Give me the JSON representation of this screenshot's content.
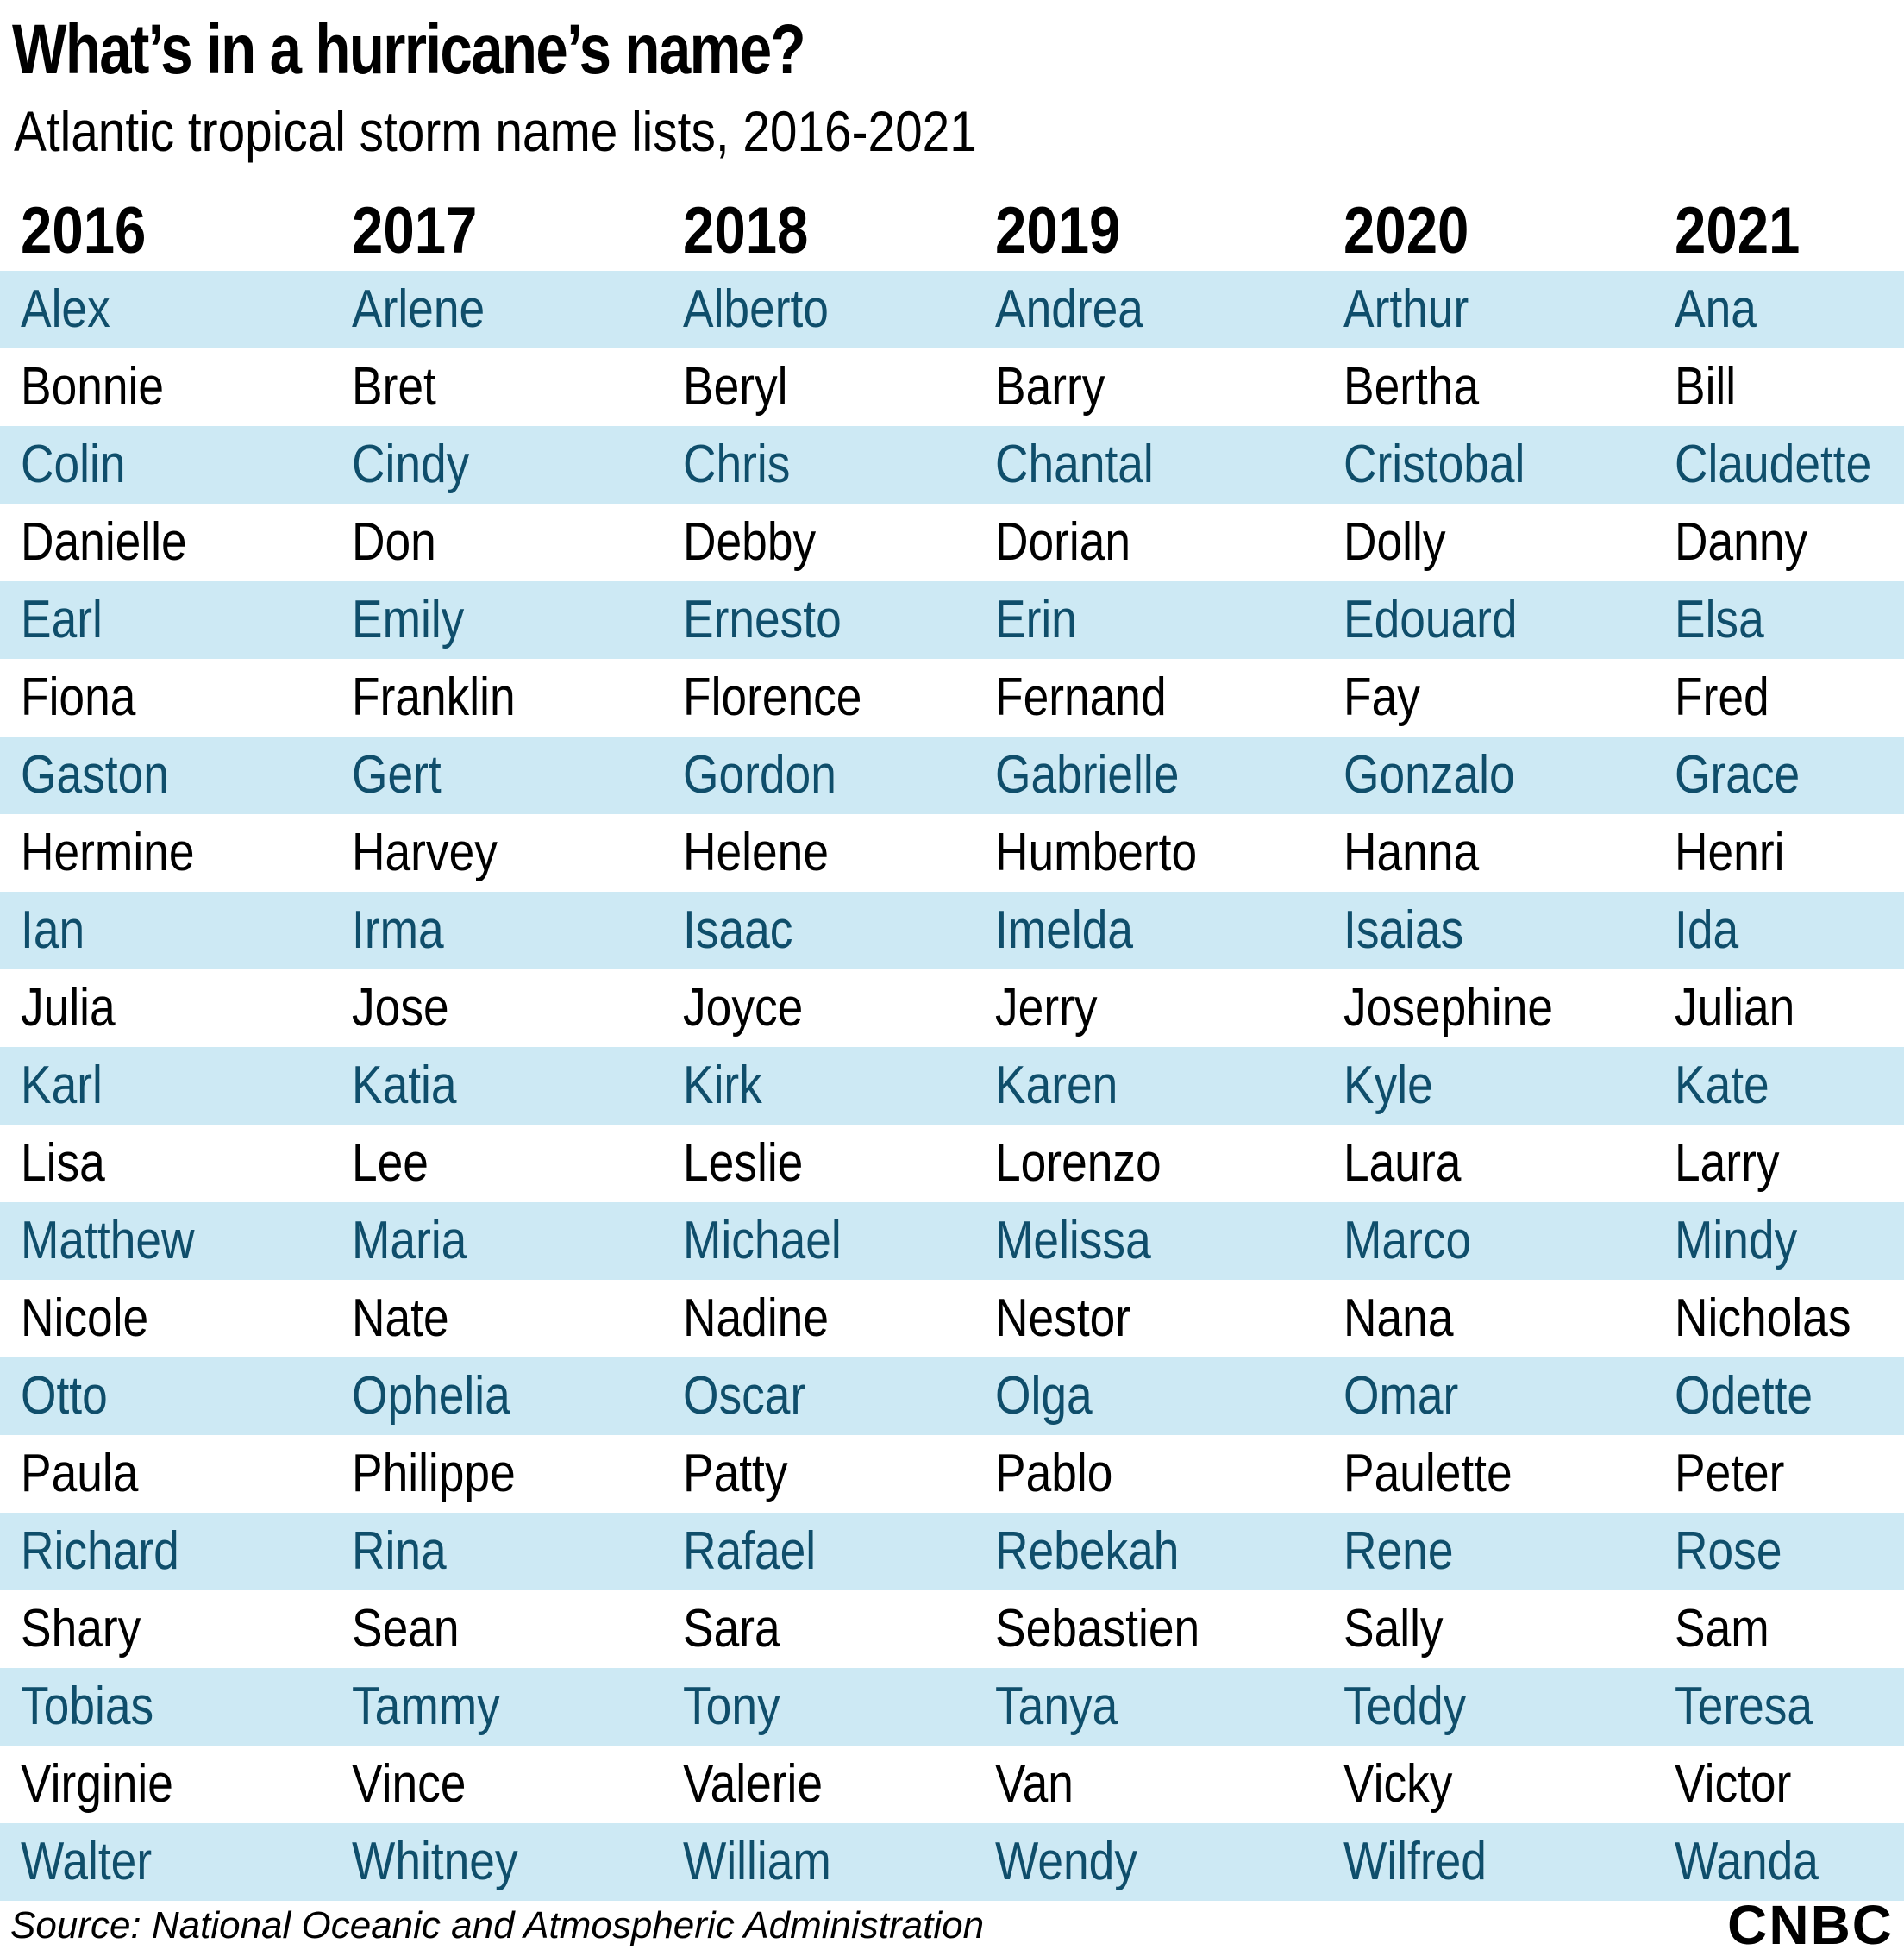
{
  "header": {
    "title": "What’s in a hurricane’s name?",
    "subtitle": "Atlantic tropical storm name lists, 2016-2021"
  },
  "chart_data": {
    "type": "table",
    "title": "What’s in a hurricane’s name?",
    "subtitle": "Atlantic tropical storm name lists, 2016-2021",
    "columns": [
      "2016",
      "2017",
      "2018",
      "2019",
      "2020",
      "2021"
    ],
    "rows": [
      [
        "Alex",
        "Arlene",
        "Alberto",
        "Andrea",
        "Arthur",
        "Ana"
      ],
      [
        "Bonnie",
        "Bret",
        "Beryl",
        "Barry",
        "Bertha",
        "Bill"
      ],
      [
        "Colin",
        "Cindy",
        "Chris",
        "Chantal",
        "Cristobal",
        "Claudette"
      ],
      [
        "Danielle",
        "Don",
        "Debby",
        "Dorian",
        "Dolly",
        "Danny"
      ],
      [
        "Earl",
        "Emily",
        "Ernesto",
        "Erin",
        "Edouard",
        "Elsa"
      ],
      [
        "Fiona",
        "Franklin",
        "Florence",
        "Fernand",
        "Fay",
        "Fred"
      ],
      [
        "Gaston",
        "Gert",
        "Gordon",
        "Gabrielle",
        "Gonzalo",
        "Grace"
      ],
      [
        "Hermine",
        "Harvey",
        "Helene",
        "Humberto",
        "Hanna",
        "Henri"
      ],
      [
        "Ian",
        "Irma",
        "Isaac",
        "Imelda",
        "Isaias",
        "Ida"
      ],
      [
        "Julia",
        "Jose",
        "Joyce",
        "Jerry",
        "Josephine",
        "Julian"
      ],
      [
        "Karl",
        "Katia",
        "Kirk",
        "Karen",
        "Kyle",
        "Kate"
      ],
      [
        "Lisa",
        "Lee",
        "Leslie",
        "Lorenzo",
        "Laura",
        "Larry"
      ],
      [
        "Matthew",
        "Maria",
        "Michael",
        "Melissa",
        "Marco",
        "Mindy"
      ],
      [
        "Nicole",
        "Nate",
        "Nadine",
        "Nestor",
        "Nana",
        "Nicholas"
      ],
      [
        "Otto",
        "Ophelia",
        "Oscar",
        "Olga",
        "Omar",
        "Odette"
      ],
      [
        "Paula",
        "Philippe",
        "Patty",
        "Pablo",
        "Paulette",
        "Peter"
      ],
      [
        "Richard",
        "Rina",
        "Rafael",
        "Rebekah",
        "Rene",
        "Rose"
      ],
      [
        "Shary",
        "Sean",
        "Sara",
        "Sebastien",
        "Sally",
        "Sam"
      ],
      [
        "Tobias",
        "Tammy",
        "Tony",
        "Tanya",
        "Teddy",
        "Teresa"
      ],
      [
        "Virginie",
        "Vince",
        "Valerie",
        "Van",
        "Vicky",
        "Victor"
      ],
      [
        "Walter",
        "Whitney",
        "William",
        "Wendy",
        "Wilfred",
        "Wanda"
      ]
    ],
    "shaded_row_color": "#cde9f4",
    "shaded_text_color": "#0f4e6b"
  },
  "footer": {
    "source": "Source: National Oceanic and Atmospheric Administration",
    "logo_text": "CNBC"
  }
}
